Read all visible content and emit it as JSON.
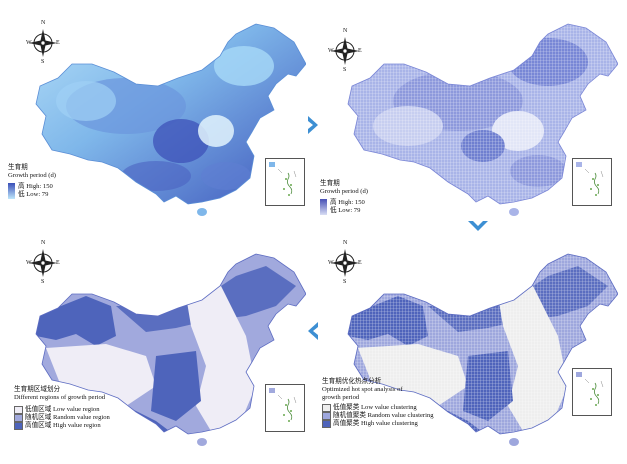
{
  "compass": {
    "n": "N",
    "s": "S",
    "w": "W",
    "e": "E"
  },
  "colors": {
    "continuous_high": "#3a4fb8",
    "continuous_low": "#bfe7fb",
    "hotspot_low": "#eeeeee",
    "hotspot_random": "#9ea7dd",
    "hotspot_high": "#4f64bb",
    "region_low": "#efedf6",
    "region_random": "#a1a9dd",
    "region_high": "#4e64bb",
    "arrow": "#3d8fd3",
    "border": "#555555"
  },
  "panels": {
    "top_left": {
      "legend_title_cn": "生育期",
      "legend_title_en": "Growth period (d)",
      "high_label": "高 High: 150",
      "low_label": "低 Low: 79"
    },
    "top_right": {
      "legend_title_cn": "生育期",
      "legend_title_en": "Growth period (d)",
      "high_label": "高 High: 150",
      "low_label": "低 Low: 79"
    },
    "bottom_left": {
      "legend_title_cn": "生育期区域划分",
      "legend_title_en": "Different regions of growth period",
      "items": [
        "低值区域 Low value region",
        "随机区域 Random value region",
        "高值区域 High value region"
      ]
    },
    "bottom_right": {
      "legend_title_cn": "生育期优化热点分析",
      "legend_title_en_1": "Optimized hot spot analysis of",
      "legend_title_en_2": "growth period",
      "items": [
        "低值聚类 Low value clustering",
        "随机值聚类 Random value clustering",
        "高值聚类 High value clustering"
      ]
    }
  },
  "icons": [
    "compass-icon",
    "arrow-right-icon",
    "arrow-down-icon",
    "arrow-left-icon"
  ]
}
